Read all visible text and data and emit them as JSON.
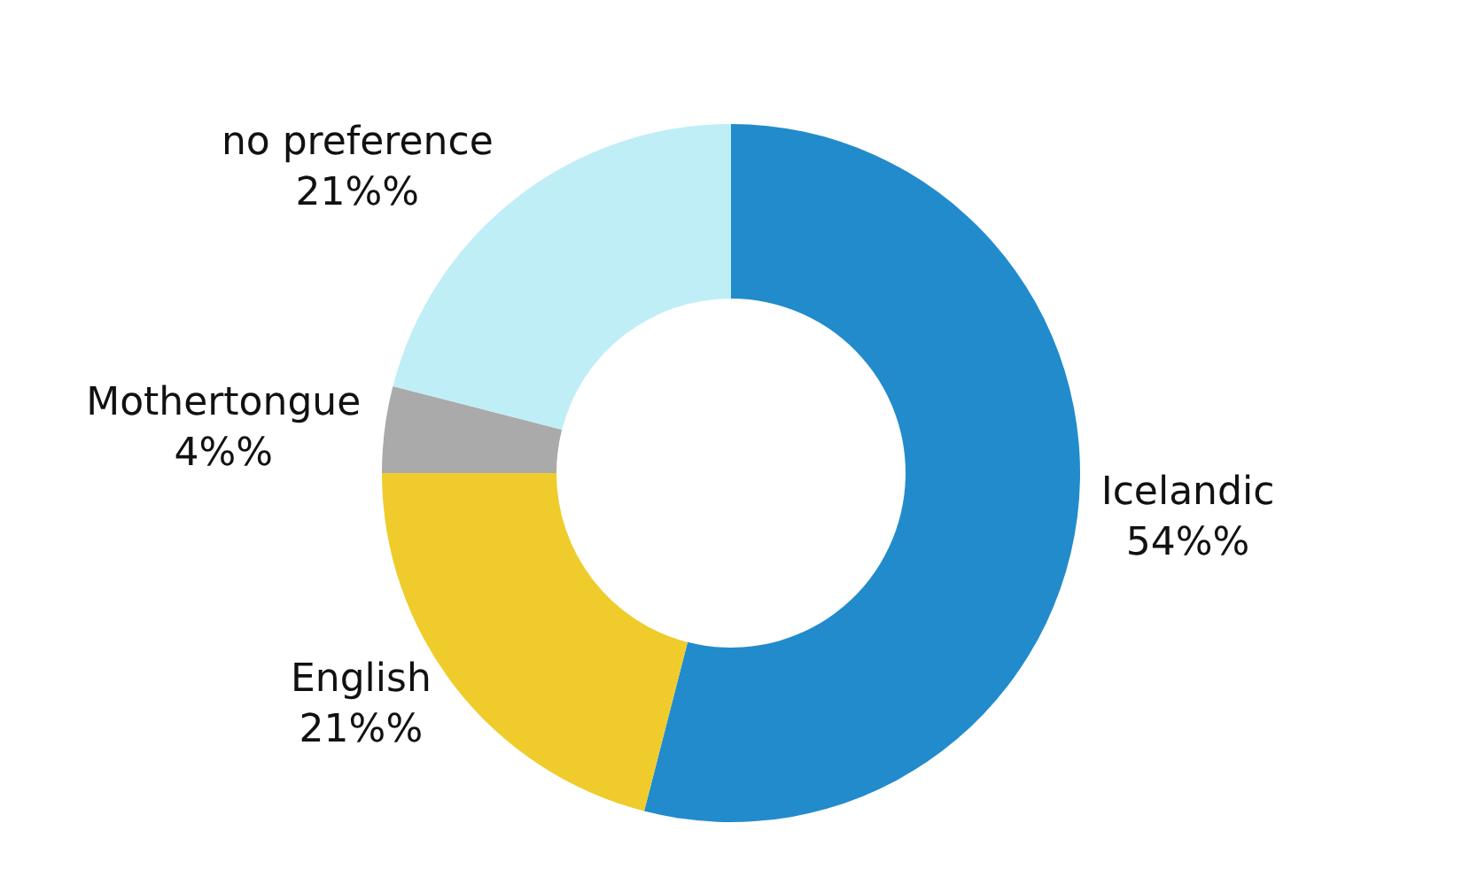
{
  "chart_data": {
    "type": "donut",
    "categories": [
      "Icelandic",
      "English",
      "Mothertongue",
      "no preference"
    ],
    "values": [
      54,
      21,
      4,
      21
    ],
    "value_labels": [
      "54%%",
      "21%%",
      "4%%",
      "21%%"
    ],
    "colors": [
      "#228bcc",
      "#efcc2c",
      "#aaaaaa",
      "#bfeef6"
    ],
    "legend": false
  }
}
